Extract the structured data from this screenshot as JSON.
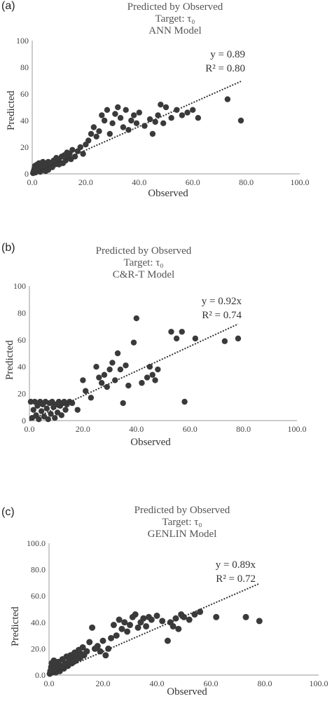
{
  "panels": [
    {
      "label": "(a)",
      "title_lines": [
        "Predicted by Observed",
        "Target: τ₀",
        "ANN Model"
      ],
      "equation": "y = 0.89",
      "r2": "R² = 0.80"
    },
    {
      "label": "(b)",
      "title_lines": [
        "Predicted by Observed",
        "Target: τ₀",
        "C&R-T Model"
      ],
      "equation": "y = 0.92x",
      "r2": "R² = 0.74"
    },
    {
      "label": "(c)",
      "title_lines": [
        "Predicted by Observed",
        "Target: τ₀",
        "GENLIN Model"
      ],
      "equation": "y = 0.89x",
      "r2": "R² = 0.72"
    }
  ],
  "colors": {
    "marker": "#3a3a3a",
    "trend": "#333333",
    "axis": "#999999"
  },
  "chart_data": [
    {
      "type": "scatter",
      "title": "Predicted by Observed / Target: τ₀ / ANN Model",
      "xlabel": "Observed",
      "ylabel": "Predicted",
      "xlim": [
        0,
        100
      ],
      "ylim": [
        0,
        100
      ],
      "xticks": [
        "0.0",
        "20.0",
        "40.0",
        "60.0",
        "80.0",
        "100.0"
      ],
      "yticks": [
        "0",
        "20",
        "40",
        "60",
        "80",
        "100"
      ],
      "trendline": {
        "slope": 0.89,
        "equation": "y = 0.89",
        "r2": "R² = 0.80"
      },
      "points": [
        [
          0.3,
          0.5
        ],
        [
          0.5,
          2
        ],
        [
          0.8,
          4
        ],
        [
          1,
          6
        ],
        [
          1.2,
          1
        ],
        [
          1.5,
          3
        ],
        [
          1.8,
          7
        ],
        [
          2,
          2
        ],
        [
          2.2,
          5
        ],
        [
          2.5,
          8
        ],
        [
          3,
          1.5
        ],
        [
          3,
          4
        ],
        [
          3.5,
          6
        ],
        [
          4,
          3
        ],
        [
          4,
          9
        ],
        [
          4.5,
          5
        ],
        [
          5,
          2
        ],
        [
          5,
          7
        ],
        [
          5.5,
          4
        ],
        [
          6,
          9
        ],
        [
          6,
          3
        ],
        [
          6.5,
          6
        ],
        [
          7,
          8
        ],
        [
          7.5,
          5
        ],
        [
          8,
          10
        ],
        [
          8.5,
          7
        ],
        [
          9,
          12
        ],
        [
          9.5,
          9
        ],
        [
          10,
          11
        ],
        [
          10,
          7
        ],
        [
          11,
          13
        ],
        [
          11.5,
          8
        ],
        [
          12,
          14
        ],
        [
          12.5,
          10
        ],
        [
          13,
          16
        ],
        [
          13.5,
          12
        ],
        [
          14,
          15
        ],
        [
          14.5,
          11
        ],
        [
          15,
          18
        ],
        [
          16,
          13
        ],
        [
          17,
          17
        ],
        [
          18,
          20
        ],
        [
          19,
          15
        ],
        [
          20,
          22
        ],
        [
          21,
          25
        ],
        [
          22,
          30
        ],
        [
          23,
          35
        ],
        [
          24,
          28
        ],
        [
          25,
          32
        ],
        [
          26,
          44
        ],
        [
          27,
          40
        ],
        [
          28,
          48
        ],
        [
          29,
          30
        ],
        [
          30,
          38
        ],
        [
          31,
          45
        ],
        [
          32,
          50
        ],
        [
          33,
          42
        ],
        [
          34,
          35
        ],
        [
          35,
          48
        ],
        [
          36,
          33
        ],
        [
          37,
          40
        ],
        [
          38,
          44
        ],
        [
          39,
          38
        ],
        [
          40,
          46
        ],
        [
          42,
          36
        ],
        [
          44,
          41
        ],
        [
          45,
          30
        ],
        [
          46,
          39
        ],
        [
          47,
          44
        ],
        [
          48,
          52
        ],
        [
          49,
          38
        ],
        [
          50,
          50
        ],
        [
          52,
          42
        ],
        [
          54,
          48
        ],
        [
          56,
          44
        ],
        [
          58,
          46
        ],
        [
          60,
          48
        ],
        [
          62,
          42
        ],
        [
          73,
          56
        ],
        [
          78,
          40
        ]
      ]
    },
    {
      "type": "scatter",
      "title": "Predicted by Observed / Target: τ₀ / C&R-T Model",
      "xlabel": "Observed",
      "ylabel": "Predicted",
      "xlim": [
        0,
        100
      ],
      "ylim": [
        0,
        100
      ],
      "xticks": [
        "0.0",
        "20.0",
        "40.0",
        "60.0",
        "80.0",
        "100.0"
      ],
      "yticks": [
        "0",
        "20",
        "40",
        "60",
        "80",
        "100"
      ],
      "trendline": {
        "slope": 0.92,
        "equation": "y = 0.92x",
        "r2": "R² = 0.74"
      },
      "points": [
        [
          0.5,
          14
        ],
        [
          1,
          2
        ],
        [
          1.5,
          8
        ],
        [
          2,
          14
        ],
        [
          2.5,
          4
        ],
        [
          3,
          11
        ],
        [
          3.5,
          1
        ],
        [
          4,
          14
        ],
        [
          4.5,
          7
        ],
        [
          5,
          12
        ],
        [
          5.5,
          3
        ],
        [
          6,
          14
        ],
        [
          6.5,
          9
        ],
        [
          7,
          1
        ],
        [
          7.5,
          13
        ],
        [
          8,
          5
        ],
        [
          8.5,
          14
        ],
        [
          9,
          10
        ],
        [
          9.5,
          2
        ],
        [
          10,
          12
        ],
        [
          10.5,
          6
        ],
        [
          11,
          14
        ],
        [
          11.5,
          11
        ],
        [
          12,
          4
        ],
        [
          12.5,
          13
        ],
        [
          13,
          14
        ],
        [
          13.5,
          8
        ],
        [
          14,
          12
        ],
        [
          15,
          14
        ],
        [
          16,
          13
        ],
        [
          18,
          8
        ],
        [
          20,
          30
        ],
        [
          21,
          22
        ],
        [
          23,
          17
        ],
        [
          25,
          40
        ],
        [
          26,
          32
        ],
        [
          27,
          28
        ],
        [
          28,
          34
        ],
        [
          29,
          25
        ],
        [
          30,
          38
        ],
        [
          31,
          43
        ],
        [
          32,
          30
        ],
        [
          33,
          50
        ],
        [
          34,
          38
        ],
        [
          35,
          13
        ],
        [
          36,
          41
        ],
        [
          37,
          26
        ],
        [
          39,
          58
        ],
        [
          40,
          76
        ],
        [
          42,
          28
        ],
        [
          44,
          32
        ],
        [
          45,
          40
        ],
        [
          46,
          34
        ],
        [
          47,
          30
        ],
        [
          48,
          38
        ],
        [
          53,
          66
        ],
        [
          55,
          61
        ],
        [
          57,
          66
        ],
        [
          58,
          14
        ],
        [
          62,
          61
        ],
        [
          73,
          59
        ],
        [
          78,
          61
        ]
      ]
    },
    {
      "type": "scatter",
      "title": "Predicted by Observed / Target: τ₀ / GENLIN Model",
      "xlabel": "Observed",
      "ylabel": "Predicted",
      "xlim": [
        0,
        100
      ],
      "ylim": [
        0,
        100
      ],
      "xticks": [
        "0.0",
        "20.0",
        "40.0",
        "60.0",
        "80.0",
        "100.0"
      ],
      "yticks": [
        "0.0",
        "20.0",
        "40.0",
        "60.0",
        "80.0",
        "100.0"
      ],
      "trendline": {
        "slope": 0.89,
        "equation": "y = 0.89x",
        "r2": "R² = 0.72"
      },
      "points": [
        [
          0.3,
          1
        ],
        [
          0.5,
          3
        ],
        [
          0.8,
          6
        ],
        [
          1,
          9
        ],
        [
          1.2,
          2
        ],
        [
          1.5,
          5
        ],
        [
          1.8,
          11
        ],
        [
          2,
          4
        ],
        [
          2.2,
          8
        ],
        [
          2.5,
          2
        ],
        [
          3,
          6
        ],
        [
          3.5,
          10
        ],
        [
          4,
          3
        ],
        [
          4.5,
          7
        ],
        [
          5,
          12
        ],
        [
          5.5,
          5
        ],
        [
          6,
          9
        ],
        [
          6.5,
          14
        ],
        [
          7,
          7
        ],
        [
          7.5,
          11
        ],
        [
          8,
          15
        ],
        [
          8.5,
          9
        ],
        [
          9,
          13
        ],
        [
          9.5,
          17
        ],
        [
          10,
          11
        ],
        [
          10.5,
          15
        ],
        [
          11,
          19
        ],
        [
          11.5,
          13
        ],
        [
          12,
          16
        ],
        [
          12.5,
          21
        ],
        [
          13,
          15
        ],
        [
          14,
          18
        ],
        [
          15,
          25
        ],
        [
          16,
          36
        ],
        [
          17,
          20
        ],
        [
          18,
          22
        ],
        [
          19,
          18
        ],
        [
          20,
          26
        ],
        [
          21,
          15
        ],
        [
          22,
          20
        ],
        [
          23,
          28
        ],
        [
          24,
          38
        ],
        [
          25,
          30
        ],
        [
          26,
          42
        ],
        [
          27,
          35
        ],
        [
          28,
          40
        ],
        [
          29,
          33
        ],
        [
          30,
          38
        ],
        [
          31,
          44
        ],
        [
          32,
          46
        ],
        [
          33,
          36
        ],
        [
          34,
          40
        ],
        [
          35,
          43
        ],
        [
          36,
          37
        ],
        [
          37,
          44
        ],
        [
          38,
          42
        ],
        [
          40,
          45
        ],
        [
          42,
          41
        ],
        [
          44,
          26
        ],
        [
          45,
          40
        ],
        [
          46,
          37
        ],
        [
          47,
          43
        ],
        [
          48,
          35
        ],
        [
          49,
          46
        ],
        [
          50,
          44
        ],
        [
          52,
          42
        ],
        [
          54,
          46
        ],
        [
          56,
          48
        ],
        [
          62,
          44
        ],
        [
          73,
          44
        ],
        [
          78,
          41
        ]
      ]
    }
  ]
}
